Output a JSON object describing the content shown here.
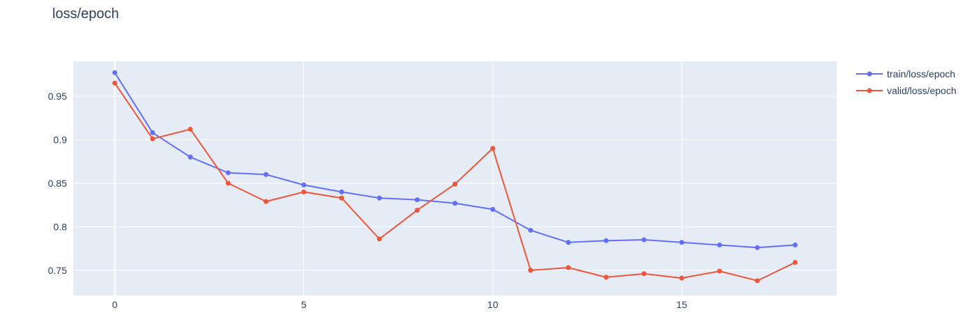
{
  "chart_data": {
    "type": "line",
    "title": "loss/epoch",
    "xlabel": "",
    "ylabel": "",
    "x": [
      0,
      1,
      2,
      3,
      4,
      5,
      6,
      7,
      8,
      9,
      10,
      11,
      12,
      13,
      14,
      15,
      16,
      17,
      18
    ],
    "xlim": [
      -1.1,
      19.1
    ],
    "ylim": [
      0.721,
      0.99
    ],
    "x_ticks": [
      0,
      5,
      10,
      15
    ],
    "y_ticks": [
      0.75,
      0.8,
      0.85,
      0.9,
      0.95
    ],
    "x_tick_labels": [
      "0",
      "5",
      "10",
      "15"
    ],
    "y_tick_labels": [
      "0.75",
      "0.8",
      "0.85",
      "0.9",
      "0.95"
    ],
    "grid": true,
    "legend_position": "top-right, outside plot",
    "plot_background": "#e5ecf6",
    "series": [
      {
        "name": "train/loss/epoch",
        "color": "#636efa",
        "values": [
          0.977,
          0.908,
          0.88,
          0.862,
          0.86,
          0.848,
          0.84,
          0.833,
          0.831,
          0.827,
          0.82,
          0.796,
          0.782,
          0.784,
          0.785,
          0.782,
          0.779,
          0.776,
          0.779
        ]
      },
      {
        "name": "valid/loss/epoch",
        "color": "#ef553b",
        "values": [
          0.965,
          0.901,
          0.912,
          0.85,
          0.829,
          0.84,
          0.833,
          0.786,
          0.819,
          0.849,
          0.89,
          0.75,
          0.753,
          0.742,
          0.746,
          0.741,
          0.749,
          0.738,
          0.759
        ]
      }
    ]
  }
}
